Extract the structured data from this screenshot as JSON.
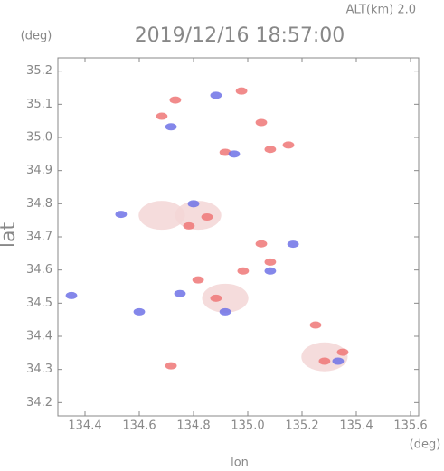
{
  "chart_data": {
    "type": "scatter",
    "title": "2019/12/16 18:57:00",
    "subtitle": "ALT(km) 2.0",
    "x_label": "lon",
    "y_label": "lat",
    "x_unit": "(deg)",
    "y_unit": "(deg)",
    "xlim": [
      134.3,
      135.63
    ],
    "ylim": [
      34.16,
      35.24
    ],
    "xticks": [
      134.4,
      134.6,
      134.8,
      {
        "value": 135.0,
        "label": "135.0"
      },
      135.2,
      135.4,
      135.6
    ],
    "yticks": [
      34.2,
      34.3,
      34.4,
      34.5,
      34.6,
      34.7,
      34.8,
      34.9,
      {
        "value": 35.0,
        "label": "35.0"
      },
      35.1,
      35.2
    ],
    "series": [
      {
        "color": "#f3d6d6",
        "marker_size": 16,
        "x": [
          134.817,
          134.917,
          135.283,
          134.683
        ],
        "values": [
          34.765,
          34.515,
          34.338,
          34.765
        ]
      },
      {
        "color": "#ee7777",
        "marker_size": 4,
        "x": [
          134.683,
          134.733,
          134.977,
          135.05,
          134.917,
          135.083,
          135.15,
          134.85,
          134.817,
          134.883,
          134.983,
          135.083,
          135.283,
          135.35,
          134.717,
          135.25,
          134.783,
          135.05
        ],
        "values": [
          35.064,
          35.113,
          35.14,
          35.045,
          34.955,
          34.964,
          34.977,
          34.76,
          34.57,
          34.515,
          34.597,
          34.624,
          34.325,
          34.352,
          34.311,
          34.434,
          34.733,
          34.679
        ]
      },
      {
        "color": "#6f72e6",
        "marker_size": 4,
        "x": [
          134.717,
          134.883,
          134.95,
          134.8,
          134.533,
          134.75,
          134.917,
          135.167,
          135.333,
          134.35,
          134.6,
          135.083
        ],
        "values": [
          35.032,
          35.127,
          34.95,
          34.8,
          34.768,
          34.529,
          34.474,
          34.678,
          34.325,
          34.523,
          34.474,
          34.597
        ]
      }
    ]
  }
}
